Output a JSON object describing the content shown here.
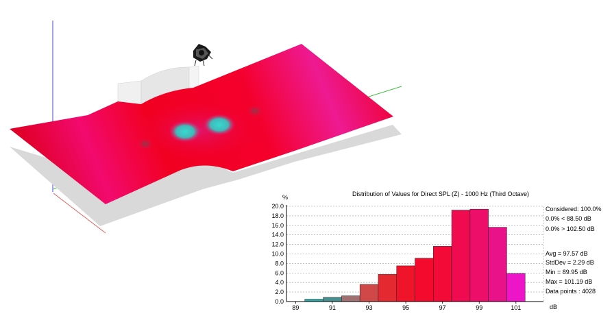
{
  "scene": {
    "colors": {
      "surface_red": "#f4002a",
      "surface_magenta": "#ee1a8e",
      "surface_cyan": "#3ad0d0",
      "shadow": "#d9d9d9"
    }
  },
  "chart_data": {
    "type": "bar",
    "title": "Distribution of Values for Direct SPL (Z)  - 1000 Hz (Third Octave)",
    "ylabel": "%",
    "xlabel": "dB",
    "ylim": [
      0,
      20
    ],
    "yticks": [
      "0.0",
      "2.0",
      "4.0",
      "6.0",
      "8.0",
      "10.0",
      "12.0",
      "14.0",
      "16.0",
      "18.0",
      "20.0"
    ],
    "xlim": [
      88.5,
      102.5
    ],
    "xticks": [
      "89",
      "91",
      "93",
      "95",
      "97",
      "99",
      "101"
    ],
    "bin_width": 1,
    "bins": [
      {
        "x": 90,
        "value": 0.5,
        "color": "#2ea8a8"
      },
      {
        "x": 91,
        "value": 0.9,
        "color": "#4a8f8f"
      },
      {
        "x": 92,
        "value": 1.2,
        "color": "#a07070"
      },
      {
        "x": 93,
        "value": 3.6,
        "color": "#d04848"
      },
      {
        "x": 94,
        "value": 5.7,
        "color": "#e42a30"
      },
      {
        "x": 95,
        "value": 7.5,
        "color": "#f0142a"
      },
      {
        "x": 96,
        "value": 9.1,
        "color": "#f40a2c"
      },
      {
        "x": 97,
        "value": 11.6,
        "color": "#f40a36"
      },
      {
        "x": 98,
        "value": 19.2,
        "color": "#f00a50"
      },
      {
        "x": 99,
        "value": 19.4,
        "color": "#ec0e68"
      },
      {
        "x": 100,
        "value": 15.6,
        "color": "#ea1288"
      },
      {
        "x": 101,
        "value": 5.9,
        "color": "#ee14c8"
      }
    ],
    "grid": true,
    "stats": [
      "Considered: 100.0%",
      "0.0%  < 88.50 dB",
      "0.0%  > 102.50 dB",
      "Avg = 97.57 dB",
      "StdDev = 2.29 dB",
      "Min = 89.95 dB",
      "Max = 101.19 dB",
      "Data points : 4028"
    ]
  }
}
